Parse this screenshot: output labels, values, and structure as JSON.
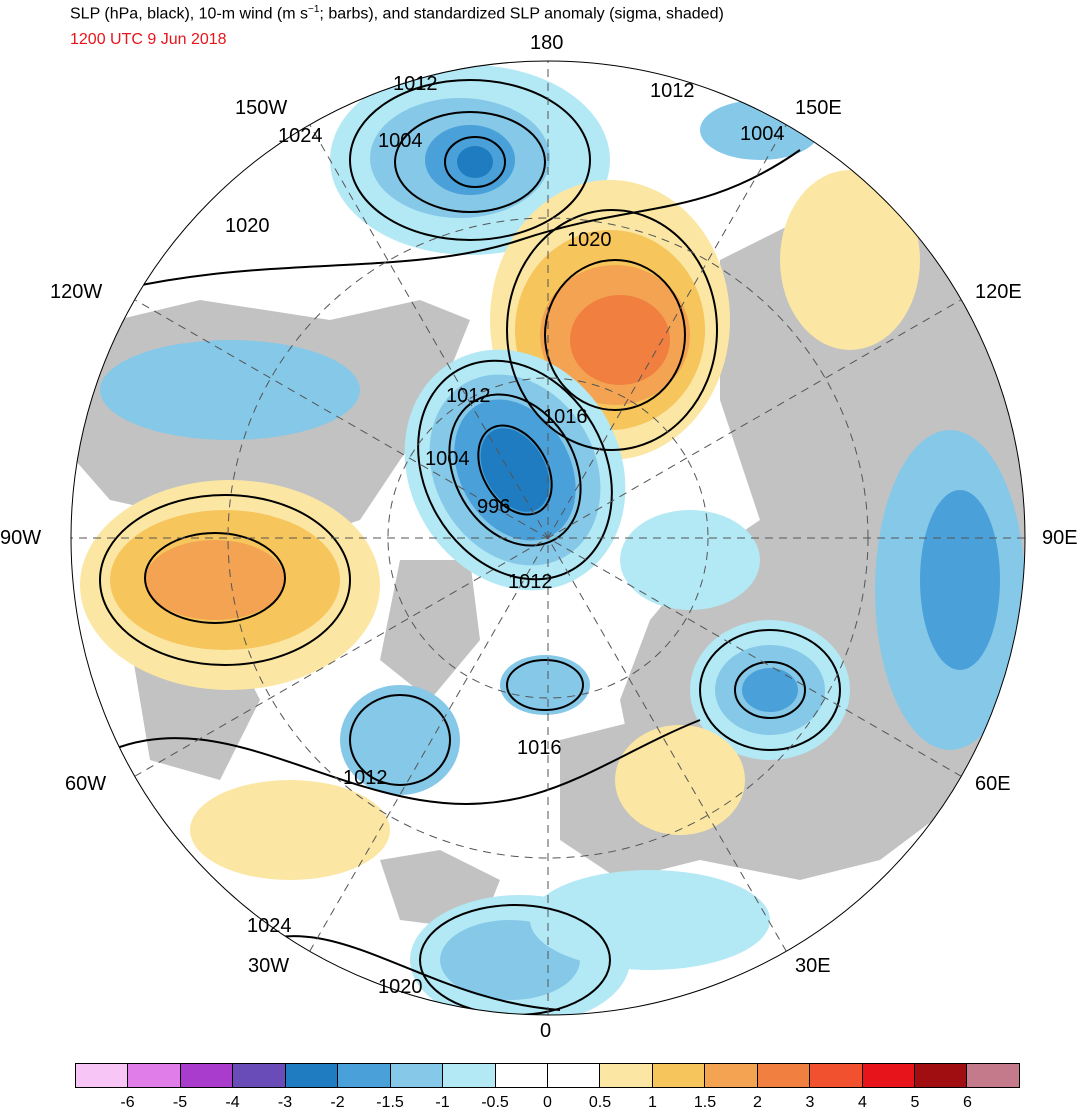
{
  "title_prefix": "SLP (hPa, black), 10-m wind (m s",
  "title_exp": "−1",
  "title_suffix": "; barbs), and standardized SLP anomaly (sigma, shaded)",
  "subtitle": "1200 UTC 9 Jun 2018",
  "longitude_labels": {
    "lon_180": "180",
    "lon_150w": "150W",
    "lon_150e": "150E",
    "lon_120w": "120W",
    "lon_120e": "120E",
    "lon_90w": "90W",
    "lon_90e": "90E",
    "lon_60w": "60W",
    "lon_60e": "60E",
    "lon_30w": "30W",
    "lon_30e": "30E",
    "lon_0": "0"
  },
  "contour_labels": [
    "1012",
    "1012",
    "1004",
    "1004",
    "1024",
    "1020",
    "1020",
    "1012",
    "1016",
    "1004",
    "996",
    "1012",
    "1012",
    "1016",
    "1024",
    "1020"
  ],
  "colorbar": {
    "colors": [
      "#f7c6f7",
      "#e07de8",
      "#a93ccc",
      "#6a4cb8",
      "#1f7cc0",
      "#4aa0d8",
      "#85c8e8",
      "#b3e8f5",
      "#ffffff",
      "#ffffff",
      "#fbe7a3",
      "#f6c55c",
      "#f3a351",
      "#f07f40",
      "#f2512f",
      "#e8141b",
      "#a00e11",
      "#c47a8a"
    ],
    "ticks": [
      "-6",
      "-5",
      "-4",
      "-3",
      "-2",
      "-1.5",
      "-1",
      "-0.5",
      "0",
      "0.5",
      "1",
      "1.5",
      "2",
      "3",
      "4",
      "5",
      "6"
    ]
  },
  "colors": {
    "land_gray": "#c2c2c2",
    "title_red": "#e8141b"
  }
}
